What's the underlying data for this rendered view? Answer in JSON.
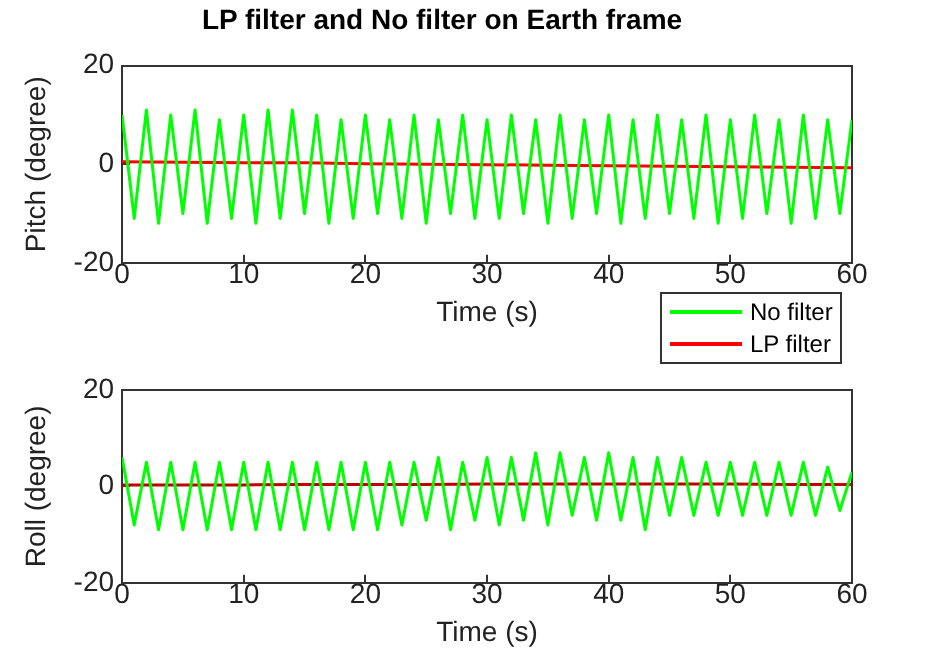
{
  "chart_data": [
    {
      "type": "line",
      "title": "LP filter and No filter on Earth frame",
      "xlabel": "Time (s)",
      "ylabel": "Pitch (degree)",
      "x": [
        0,
        1,
        2,
        3,
        4,
        5,
        6,
        7,
        8,
        9,
        10,
        11,
        12,
        13,
        14,
        15,
        16,
        17,
        18,
        19,
        20,
        21,
        22,
        23,
        24,
        25,
        26,
        27,
        28,
        29,
        30,
        31,
        32,
        33,
        34,
        35,
        36,
        37,
        38,
        39,
        40,
        41,
        42,
        43,
        44,
        45,
        46,
        47,
        48,
        49,
        50,
        51,
        52,
        53,
        54,
        55,
        56,
        57,
        58,
        59,
        60
      ],
      "xlim": [
        0,
        60
      ],
      "xticks": [
        0,
        10,
        20,
        30,
        40,
        50,
        60
      ],
      "ylim": [
        -20,
        20
      ],
      "yticks": [
        -20,
        0,
        20
      ],
      "legend": "bottom right",
      "grid": false,
      "series": [
        {
          "name": "No filter",
          "color": "#00ff00",
          "values": [
            10,
            -11,
            11,
            -12,
            10,
            -10,
            11,
            -12,
            9,
            -11,
            10,
            -12,
            11,
            -11,
            11,
            -10,
            10,
            -12,
            9,
            -11,
            10,
            -10,
            9,
            -11,
            10,
            -12,
            9,
            -10,
            10,
            -11,
            9,
            -11,
            10,
            -10,
            9,
            -12,
            10,
            -11,
            9,
            -10,
            10,
            -12,
            9,
            -11,
            10,
            -10,
            9,
            -11,
            10,
            -12,
            9,
            -11,
            10,
            -10,
            9,
            -12,
            10,
            -11,
            9,
            -10,
            9
          ]
        },
        {
          "name": "LP filter",
          "color": "#ff0000",
          "x": [
            0,
            5,
            10,
            15,
            20,
            25,
            30,
            35,
            40,
            45,
            50,
            55,
            60
          ],
          "values": [
            0.5,
            0.4,
            0.3,
            0.3,
            0.1,
            0,
            -0.1,
            -0.2,
            -0.3,
            -0.4,
            -0.5,
            -0.6,
            -0.7
          ]
        }
      ]
    },
    {
      "type": "line",
      "xlabel": "Time (s)",
      "ylabel": "Roll (degree)",
      "x": [
        0,
        1,
        2,
        3,
        4,
        5,
        6,
        7,
        8,
        9,
        10,
        11,
        12,
        13,
        14,
        15,
        16,
        17,
        18,
        19,
        20,
        21,
        22,
        23,
        24,
        25,
        26,
        27,
        28,
        29,
        30,
        31,
        32,
        33,
        34,
        35,
        36,
        37,
        38,
        39,
        40,
        41,
        42,
        43,
        44,
        45,
        46,
        47,
        48,
        49,
        50,
        51,
        52,
        53,
        54,
        55,
        56,
        57,
        58,
        59,
        60
      ],
      "xlim": [
        0,
        60
      ],
      "xticks": [
        0,
        10,
        20,
        30,
        40,
        50,
        60
      ],
      "ylim": [
        -20,
        20
      ],
      "yticks": [
        -20,
        0,
        20
      ],
      "grid": false,
      "series": [
        {
          "color": "#00ff00",
          "values": [
            6,
            -8,
            5,
            -9,
            5,
            -9,
            5,
            -9,
            5,
            -9,
            5,
            -9,
            5,
            -9,
            5,
            -9,
            5,
            -9,
            5,
            -9,
            5,
            -9,
            5,
            -8,
            5,
            -7,
            6,
            -9,
            5,
            -7,
            6,
            -8,
            6,
            -7,
            7,
            -8,
            7,
            -6,
            6,
            -7,
            7,
            -7,
            6,
            -9,
            6,
            -6,
            6,
            -6,
            5,
            -6,
            5,
            -6,
            5,
            -6,
            5,
            -6,
            5,
            -6,
            4,
            -5,
            3
          ]
        },
        {
          "color": "#c00000",
          "x": [
            0,
            5,
            10,
            15,
            20,
            25,
            30,
            35,
            40,
            45,
            50,
            55,
            60
          ],
          "values": [
            0.3,
            0.3,
            0.3,
            0.4,
            0.4,
            0.4,
            0.5,
            0.5,
            0.5,
            0.5,
            0.5,
            0.4,
            0.4
          ]
        }
      ]
    }
  ]
}
